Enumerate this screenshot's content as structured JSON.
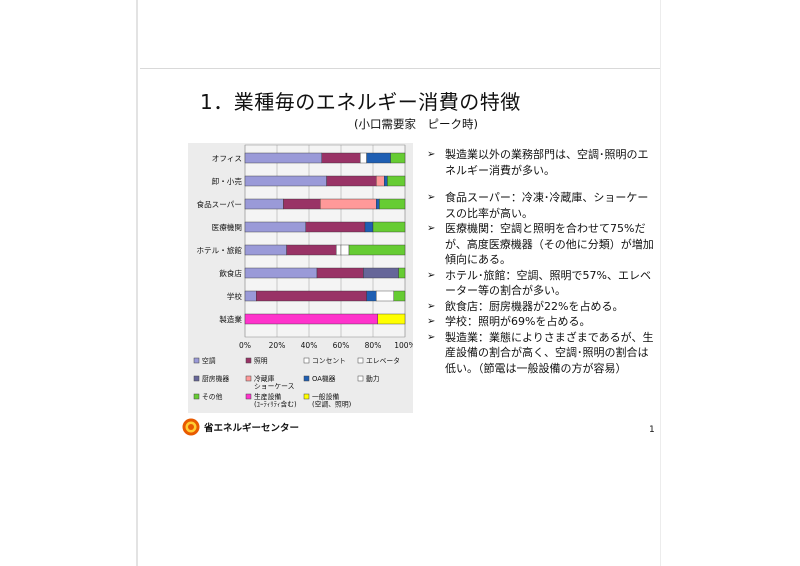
{
  "title": "1．業種毎のエネルギー消費の特徴",
  "subtitle": "(小口需要家　ピーク時)",
  "chart_data": {
    "type": "bar",
    "orientation": "horizontal",
    "stacked": true,
    "percent": true,
    "categories": [
      "オフィス",
      "卸・小売",
      "食品スーパー",
      "医療機関",
      "ホテル・旅館",
      "飲食店",
      "学校",
      "製造業"
    ],
    "x_ticks": [
      "0%",
      "20%",
      "40%",
      "60%",
      "80%",
      "100%"
    ],
    "xlim": [
      0,
      100
    ],
    "grid": true,
    "legend_position": "bottom",
    "series": [
      {
        "name": "空調",
        "color": "#9a9ad8",
        "values": [
          48,
          51,
          24,
          38,
          26,
          45,
          7,
          0
        ]
      },
      {
        "name": "照明",
        "color": "#993366",
        "values": [
          24,
          31,
          23,
          37,
          31,
          29,
          69,
          0
        ]
      },
      {
        "name": "コンセント",
        "color": "#ffffff",
        "values": [
          4,
          0,
          0,
          0,
          3,
          0,
          0,
          0
        ]
      },
      {
        "name": "エレベータ",
        "color": "#ffffff",
        "values": [
          0,
          0,
          0,
          0,
          5,
          0,
          0,
          0
        ]
      },
      {
        "name": "厨房機器",
        "color": "#666699",
        "values": [
          0,
          0,
          0,
          0,
          0,
          22,
          0,
          0
        ]
      },
      {
        "name": "冷蔵庫\nショーケース",
        "color": "#ff9999",
        "values": [
          0,
          5,
          35,
          0,
          0,
          0,
          0,
          0
        ]
      },
      {
        "name": "OA機器",
        "color": "#1f5fb3",
        "values": [
          15,
          2,
          2,
          5,
          0,
          0,
          6,
          0
        ]
      },
      {
        "name": "動力",
        "color": "#ffffff",
        "values": [
          0,
          0,
          0,
          0,
          0,
          0,
          11,
          0
        ]
      },
      {
        "name": "その他",
        "color": "#66cc33",
        "values": [
          9,
          11,
          16,
          20,
          35,
          4,
          7,
          0
        ]
      },
      {
        "name": "生産設備\n(ﾕｰﾃｨﾘﾃｨ含む)",
        "color": "#ff33cc",
        "values": [
          0,
          0,
          0,
          0,
          0,
          0,
          0,
          83
        ]
      },
      {
        "name": "一般設備\n(空調、照明)",
        "color": "#ffff00",
        "values": [
          0,
          0,
          0,
          0,
          0,
          0,
          0,
          17
        ]
      }
    ]
  },
  "bullets": [
    "製造業以外の業務部門は、空調･照明のエネルギー消費が多い。",
    "食品スーパー：冷凍･冷蔵庫、ショーケースの比率が高い。",
    "医療機関：空調と照明を合わせて75%だが、高度医療機器（その他に分類）が増加傾向にある。",
    "ホテル･旅館：空調、照明で57%、エレベーター等の割合が多い。",
    "飲食店：厨房機器が22%を占める。",
    "学校：照明が69%を占める。",
    "製造業：業態によりさまざまであるが、生産設備の割合が高く、空調･照明の割合は低い。（節電は一般設備の方が容易）"
  ],
  "logo_text": "省エネルギーセンター",
  "page_number": "1",
  "bullet_symbol": "➢"
}
